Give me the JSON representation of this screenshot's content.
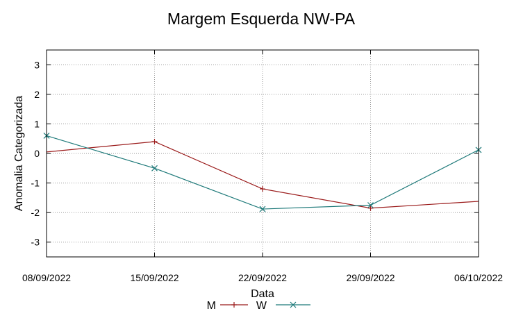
{
  "chart_data": {
    "type": "line",
    "title": "Margem Esquerda NW-PA",
    "xlabel": "Data",
    "ylabel": "Anomalia Categorizada",
    "categories": [
      "08/09/2022",
      "15/09/2022",
      "22/09/2022",
      "29/09/2022",
      "06/10/2022"
    ],
    "ylim": [
      -3.5,
      3.5
    ],
    "yticks": [
      -3,
      -2,
      -1,
      0,
      1,
      2,
      3
    ],
    "grid": true,
    "legend_position": "bottom-center",
    "series": [
      {
        "name": "M",
        "color": "#9b1c1c",
        "marker": "plus",
        "values": [
          0.05,
          0.4,
          -1.2,
          -1.85,
          -1.62
        ],
        "marked": [
          false,
          true,
          true,
          true,
          false
        ]
      },
      {
        "name": "W",
        "color": "#1f7a7a",
        "marker": "cross",
        "values": [
          0.6,
          -0.5,
          -1.88,
          -1.75,
          0.12
        ],
        "marked": [
          true,
          true,
          true,
          true,
          true
        ]
      }
    ]
  }
}
